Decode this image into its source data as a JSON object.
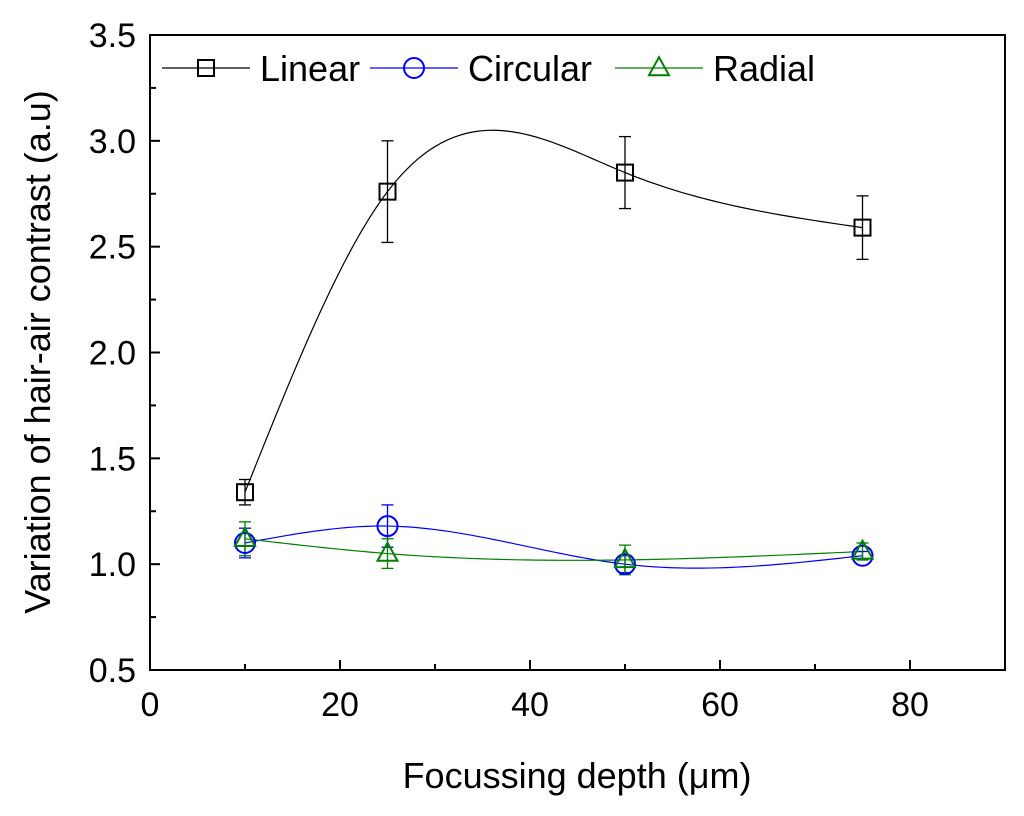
{
  "chart_data": {
    "type": "line",
    "title": "",
    "xlabel": "Focussing depth (μm)",
    "ylabel": "Variation of hair-air contrast (a.u)",
    "xlim": [
      0,
      90
    ],
    "ylim": [
      0.5,
      3.5
    ],
    "xticks": [
      0,
      20,
      40,
      60,
      80
    ],
    "xtick_labels": [
      "0",
      "20",
      "40",
      "60",
      "80"
    ],
    "yticks": [
      0.5,
      1.0,
      1.5,
      2.0,
      2.5,
      3.0,
      3.5
    ],
    "ytick_labels": [
      "0.5",
      "1.0",
      "1.5",
      "2.0",
      "2.5",
      "3.0",
      "3.5"
    ],
    "grid": false,
    "legend_position": "top",
    "x": [
      10,
      25,
      50,
      75
    ],
    "series": [
      {
        "name": "Linear",
        "marker": "square",
        "color": "#000000",
        "values": [
          1.34,
          2.76,
          2.85,
          2.59
        ],
        "errors": [
          0.06,
          0.24,
          0.17,
          0.15
        ]
      },
      {
        "name": "Circular",
        "marker": "circle",
        "color": "#0000ff",
        "values": [
          1.1,
          1.18,
          1.0,
          1.04
        ],
        "errors": [
          0.07,
          0.1,
          0.04,
          0.02
        ]
      },
      {
        "name": "Radial",
        "marker": "triangle",
        "color": "#008000",
        "values": [
          1.12,
          1.05,
          1.02,
          1.06
        ],
        "errors": [
          0.08,
          0.07,
          0.07,
          0.04
        ]
      }
    ]
  }
}
